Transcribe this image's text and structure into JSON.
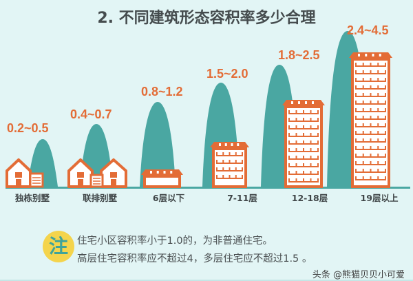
{
  "title": "2. 不同建筑形态容积率多少合理",
  "colors": {
    "background": "#e2f5f5",
    "peak": "#4aa7a2",
    "building": "#e36c36",
    "badge": "#f4d44c"
  },
  "columns": [
    {
      "category": "独栋别墅",
      "range": "0.2~0.5",
      "icon": "single-house-icon"
    },
    {
      "category": "联排别墅",
      "range": "0.4~0.7",
      "icon": "townhouse-icon"
    },
    {
      "category": "6层以下",
      "range": "0.8~1.2",
      "icon": "low-rise-building-icon"
    },
    {
      "category": "7-11层",
      "range": "1.5~2.0",
      "icon": "mid-rise-building-icon"
    },
    {
      "category": "12-18层",
      "range": "1.8~2.5",
      "icon": "high-rise-building-icon"
    },
    {
      "category": "19层以上",
      "range": "2.4~4.5",
      "icon": "super-high-rise-building-icon"
    }
  ],
  "note": {
    "badge": "注",
    "lines": [
      "住宅小区容积率小于1.0的，为非普通住宅。",
      "高层住宅容积率应不超过4，多层住宅应不超过1.5 。"
    ]
  },
  "watermark": "头条 @熊猫贝贝小可爱"
}
